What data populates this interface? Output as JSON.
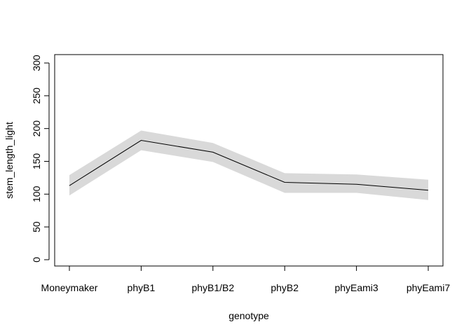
{
  "chart_data": {
    "type": "line",
    "title": "",
    "xlabel": "genotype",
    "ylabel": "stem_length_light",
    "categories": [
      "Moneymaker",
      "phyB1",
      "phyB1/B2",
      "phyB2",
      "phyEami3",
      "phyEami7"
    ],
    "series": [
      {
        "values": [
          113,
          182,
          164,
          118,
          115,
          106
        ],
        "lower": [
          98,
          167,
          149,
          102,
          102,
          91
        ],
        "upper": [
          129,
          197,
          178,
          132,
          130,
          122
        ]
      }
    ],
    "ylim": [
      0,
      300
    ],
    "yticks": [
      0,
      50,
      100,
      150,
      200,
      250,
      300
    ],
    "grid": false,
    "legend": "none",
    "colors": {
      "line": "#000000",
      "band": "#d9d9d9",
      "axis": "#000000"
    }
  }
}
